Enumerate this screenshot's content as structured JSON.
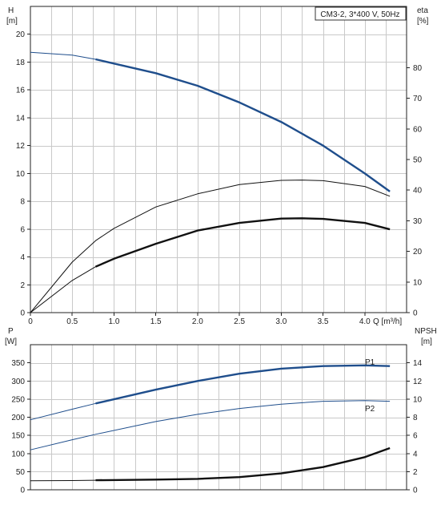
{
  "chart_data": [
    {
      "type": "line",
      "title": "CM3-2, 3*400 V, 50Hz",
      "xlabel": "Q [m³/h]",
      "ylabel_left": "H",
      "ylabel_left_unit": "[m]",
      "ylabel_right": "eta",
      "ylabel_right_unit": "[%]",
      "xlim": [
        0,
        4.5
      ],
      "ylim_left": [
        0,
        22
      ],
      "ylim_right": [
        0,
        100
      ],
      "x_ticks": [
        "0",
        "0.5",
        "1.0",
        "1.5",
        "2.0",
        "2.5",
        "3.0",
        "3.5",
        "4.0"
      ],
      "y_left_ticks": [
        "0",
        "2",
        "4",
        "6",
        "8",
        "10",
        "12",
        "14",
        "16",
        "18",
        "20"
      ],
      "y_right_ticks": [
        "0",
        "10",
        "20",
        "30",
        "40",
        "50",
        "60",
        "70",
        "80"
      ],
      "grid": true,
      "series": [
        {
          "role": "H",
          "axis": "left",
          "color": "#1f4e8c",
          "x": [
            0,
            0.5,
            0.78,
            1.5,
            2.0,
            2.5,
            3.0,
            3.5,
            4.0,
            4.3
          ],
          "y": [
            18.7,
            18.5,
            18.2,
            17.2,
            16.3,
            15.1,
            13.7,
            12.0,
            10.0,
            8.7
          ],
          "bold_from": 0.78
        },
        {
          "role": "eta-overall",
          "axis": "right",
          "color": "#111111",
          "x": [
            0,
            0.5,
            0.78,
            1.0,
            1.5,
            2.0,
            2.5,
            3.0,
            3.25,
            3.5,
            4.0,
            4.3
          ],
          "y": [
            0,
            16.5,
            23.5,
            27.5,
            34.5,
            38.8,
            41.8,
            43.2,
            43.3,
            43.1,
            41.2,
            38.0
          ]
        },
        {
          "role": "eta-hydraulic",
          "axis": "right",
          "color": "#111111",
          "x": [
            0,
            0.5,
            0.78,
            1.0,
            1.5,
            2.0,
            2.5,
            3.0,
            3.25,
            3.5,
            4.0,
            4.3
          ],
          "y": [
            0,
            10.5,
            15.0,
            17.6,
            22.5,
            26.8,
            29.3,
            30.7,
            30.8,
            30.6,
            29.3,
            27.2
          ],
          "bold_from": 0.78
        }
      ]
    },
    {
      "type": "line",
      "xlabel": "",
      "ylabel_left": "P",
      "ylabel_left_unit": "[W]",
      "ylabel_right": "NPSH",
      "ylabel_right_unit": "[m]",
      "xlim": [
        0,
        4.5
      ],
      "ylim_left": [
        0,
        400
      ],
      "ylim_right": [
        0,
        16
      ],
      "y_left_ticks": [
        "0",
        "50",
        "100",
        "150",
        "200",
        "250",
        "300",
        "350"
      ],
      "y_right_ticks": [
        "0",
        "2",
        "4",
        "6",
        "8",
        "10",
        "12",
        "14"
      ],
      "grid": true,
      "series": [
        {
          "name": "P1",
          "axis": "left",
          "color": "#1f4e8c",
          "x": [
            0,
            0.5,
            0.78,
            1.5,
            2.0,
            2.5,
            3.0,
            3.5,
            4.0,
            4.3
          ],
          "y": [
            193,
            222,
            238,
            276,
            300,
            320,
            334,
            341,
            343,
            341
          ],
          "bold_from": 0.78
        },
        {
          "name": "P2",
          "axis": "left",
          "color": "#1f4e8c",
          "x": [
            0,
            0.5,
            0.78,
            1.5,
            2.0,
            2.5,
            3.0,
            3.5,
            4.0,
            4.3
          ],
          "y": [
            110,
            138,
            153,
            188,
            208,
            224,
            236,
            244,
            246,
            244
          ]
        },
        {
          "role": "NPSH",
          "axis": "right",
          "color": "#111111",
          "x": [
            0,
            0.5,
            0.78,
            1.5,
            2.0,
            2.5,
            3.0,
            3.5,
            4.0,
            4.3
          ],
          "y": [
            1.0,
            1.02,
            1.05,
            1.12,
            1.2,
            1.4,
            1.8,
            2.5,
            3.6,
            4.6
          ],
          "bold_from": 0.78
        }
      ]
    }
  ]
}
